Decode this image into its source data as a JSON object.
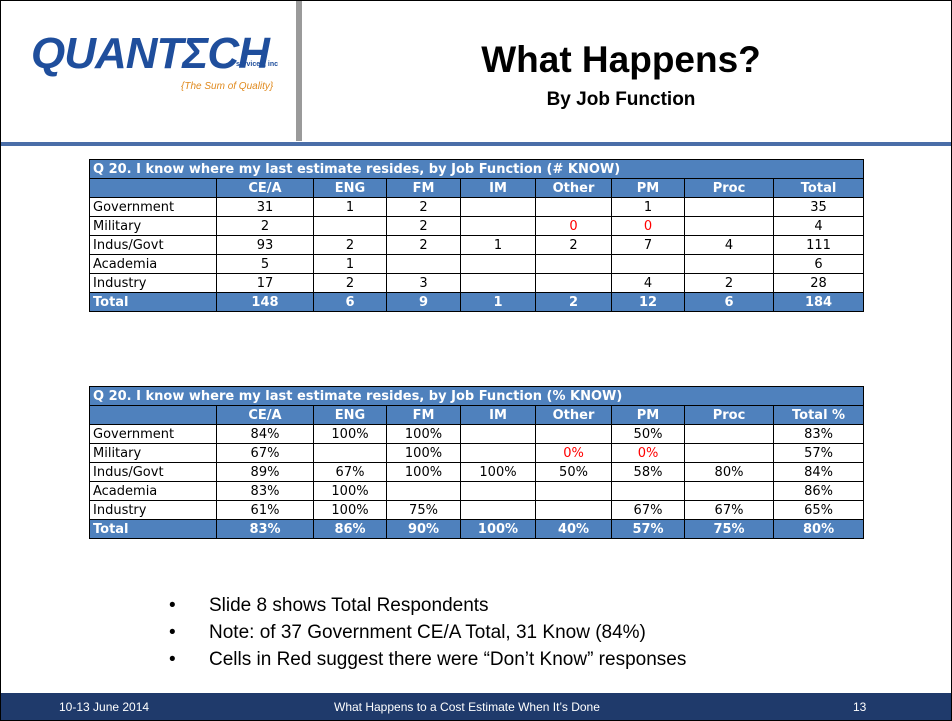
{
  "logo": {
    "name": "QUANTΣCH",
    "suffix": "services, inc",
    "tagline": "{The Sum of Quality}"
  },
  "header": {
    "title": "What Happens?",
    "subtitle": "By Job Function"
  },
  "highlight_color": "#ff0000",
  "tables": [
    {
      "caption": "Q 20. I know where my last estimate resides, by Job Function (# KNOW)",
      "columns": [
        "CE/A",
        "ENG",
        "FM",
        "IM",
        "Other",
        "PM",
        "Proc",
        "Total"
      ],
      "rows": [
        {
          "label": "Government",
          "cells": [
            31,
            1,
            2,
            null,
            null,
            1,
            null,
            35
          ]
        },
        {
          "label": "Military",
          "cells": [
            2,
            null,
            2,
            null,
            0,
            0,
            null,
            4
          ]
        },
        {
          "label": "Indus/Govt",
          "cells": [
            93,
            2,
            2,
            1,
            2,
            7,
            4,
            111
          ]
        },
        {
          "label": "Academia",
          "cells": [
            5,
            1,
            null,
            null,
            null,
            null,
            null,
            6
          ]
        },
        {
          "label": "Industry",
          "cells": [
            17,
            2,
            3,
            null,
            null,
            4,
            2,
            28
          ]
        }
      ],
      "total": {
        "label": "Total",
        "cells": [
          148,
          6,
          9,
          1,
          2,
          12,
          6,
          184
        ]
      },
      "red_cells": [
        {
          "row": 1,
          "col": 4
        },
        {
          "row": 1,
          "col": 5
        }
      ]
    },
    {
      "caption": "Q 20. I know where my last estimate resides, by Job Function (% KNOW)",
      "columns": [
        "CE/A",
        "ENG",
        "FM",
        "IM",
        "Other",
        "PM",
        "Proc",
        "Total %"
      ],
      "rows": [
        {
          "label": "Government",
          "cells": [
            "84%",
            "100%",
            "100%",
            null,
            null,
            "50%",
            null,
            "83%"
          ]
        },
        {
          "label": "Military",
          "cells": [
            "67%",
            null,
            "100%",
            null,
            "0%",
            "0%",
            null,
            "57%"
          ]
        },
        {
          "label": "Indus/Govt",
          "cells": [
            "89%",
            "67%",
            "100%",
            "100%",
            "50%",
            "58%",
            "80%",
            "84%"
          ]
        },
        {
          "label": "Academia",
          "cells": [
            "83%",
            "100%",
            null,
            null,
            null,
            null,
            null,
            "86%"
          ]
        },
        {
          "label": "Industry",
          "cells": [
            "61%",
            "100%",
            "75%",
            null,
            null,
            "67%",
            "67%",
            "65%"
          ]
        }
      ],
      "total": {
        "label": "Total",
        "cells": [
          "83%",
          "86%",
          "90%",
          "100%",
          "40%",
          "57%",
          "75%",
          "80%"
        ]
      },
      "red_cells": [
        {
          "row": 1,
          "col": 4
        },
        {
          "row": 1,
          "col": 5
        }
      ]
    }
  ],
  "bullets": [
    "Slide 8 shows Total Respondents",
    "Note:  of 37 Government CE/A Total, 31 Know (84%)",
    "Cells in Red suggest there were “Don’t Know” responses"
  ],
  "footer": {
    "date": "10-13 June 2014",
    "title": "What Happens to a Cost Estimate When It’s Done",
    "page": "13"
  }
}
